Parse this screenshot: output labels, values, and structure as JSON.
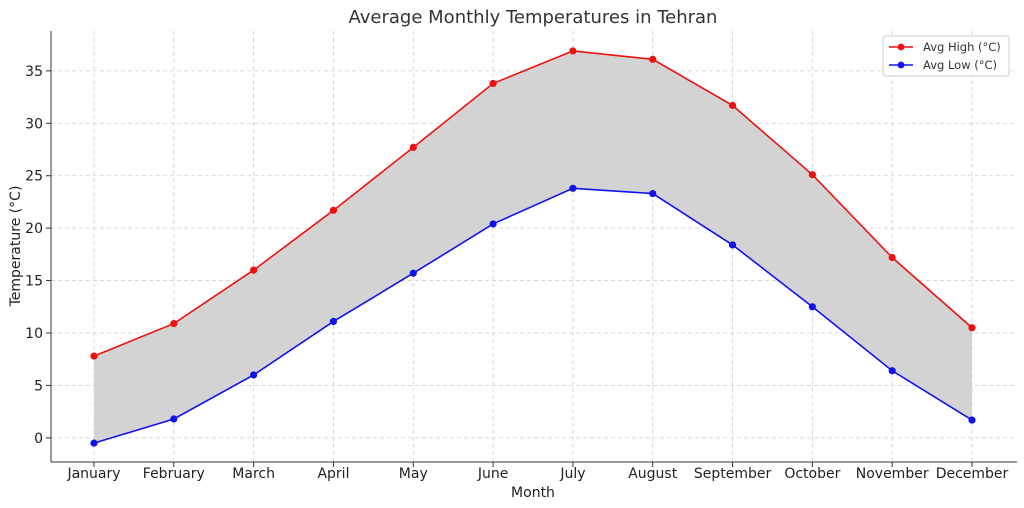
{
  "chart_data": {
    "type": "line",
    "title": "Average Monthly Temperatures in Tehran",
    "xlabel": "Month",
    "ylabel": "Temperature (°C)",
    "categories": [
      "January",
      "February",
      "March",
      "April",
      "May",
      "June",
      "July",
      "August",
      "September",
      "October",
      "November",
      "December"
    ],
    "ylim": [
      -2.3,
      38.8
    ],
    "yticks": [
      0,
      5,
      10,
      15,
      20,
      25,
      30,
      35
    ],
    "grid": true,
    "legend_position": "top-right",
    "fill_between": {
      "between": [
        "Avg High (°C)",
        "Avg Low (°C)"
      ],
      "color": "#d3d3d3"
    },
    "series": [
      {
        "name": "Avg High (°C)",
        "color": "#ee1111",
        "values": [
          7.8,
          10.9,
          16.0,
          21.7,
          27.7,
          33.8,
          36.9,
          36.1,
          31.7,
          25.1,
          17.2,
          10.5
        ]
      },
      {
        "name": "Avg Low (°C)",
        "color": "#1111ee",
        "values": [
          -0.5,
          1.8,
          6.0,
          11.1,
          15.7,
          20.4,
          23.8,
          23.3,
          18.4,
          12.5,
          6.4,
          1.7
        ]
      }
    ]
  }
}
